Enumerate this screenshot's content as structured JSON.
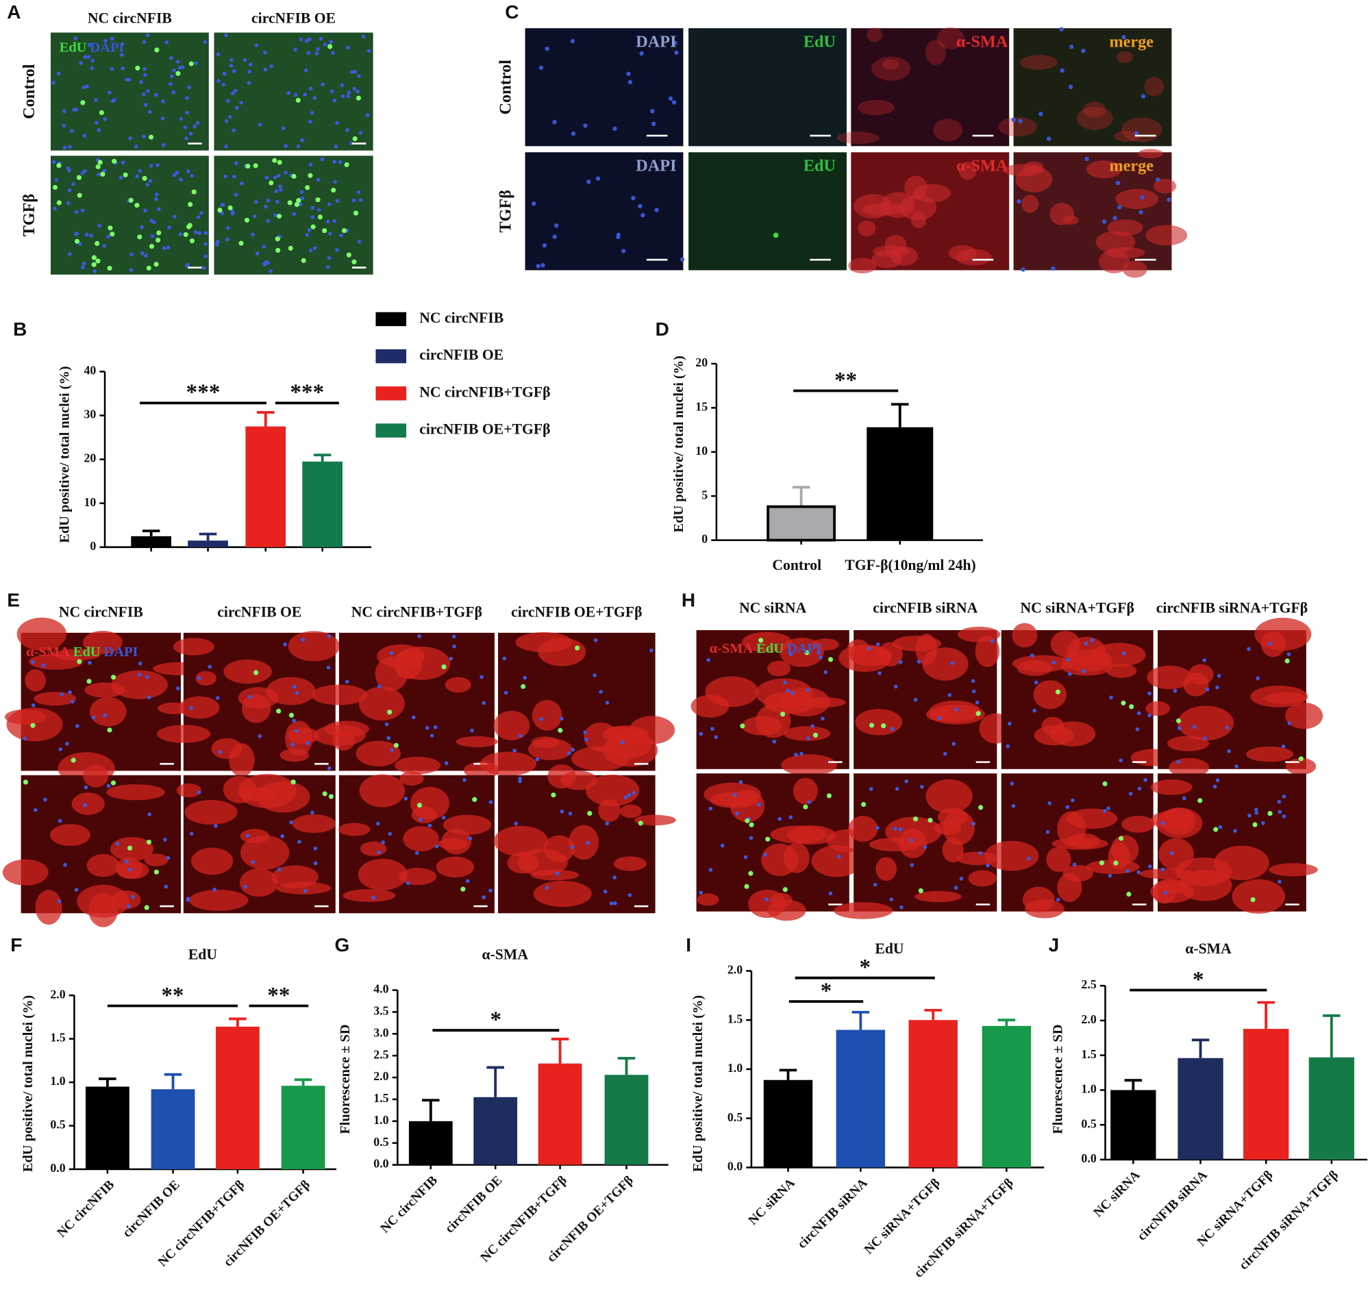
{
  "figure_panels": {
    "A": {
      "label": "A",
      "columns": [
        "NC circNFIB",
        "circNFIB OE"
      ],
      "rows": [
        "Control",
        "TGFβ"
      ],
      "channels": [
        "EdU",
        "DAPI"
      ]
    },
    "C": {
      "label": "C",
      "rows": [
        "Control",
        "TGFβ"
      ],
      "channels": [
        "DAPI",
        "EdU",
        "α-SMA",
        "merge"
      ]
    },
    "E": {
      "label": "E",
      "columns": [
        "NC circNFIB",
        "circNFIB OE",
        "NC circNFIB+TGFβ",
        "circNFIB OE+TGFβ"
      ],
      "channels": [
        "α-SMA",
        "EdU",
        "DAPI"
      ]
    },
    "H": {
      "label": "H",
      "columns": [
        "NC siRNA",
        "circNFIB siRNA",
        "NC siRNA+TGFβ",
        "circNFIB siRNA+TGFβ"
      ],
      "channels": [
        "α-SMA",
        "EdU",
        "DAPI"
      ]
    }
  },
  "chart_data": [
    {
      "type": "bar",
      "panel_label": "B",
      "ylabel": "EdU positive/ total nuclei (%)",
      "categories": [
        "NC circNFIB",
        "circNFIB OE",
        "NC circNFIB+TGFβ",
        "circNFIB OE+TGFβ"
      ],
      "values": [
        2.5,
        1.5,
        27.5,
        19.5
      ],
      "errors": [
        1.2,
        1.5,
        3.2,
        1.5
      ],
      "colors": [
        "#000000",
        "#1e2d6a",
        "#e8231f",
        "#137a4c"
      ],
      "ylim": [
        0,
        40
      ],
      "yticks": [
        0,
        10,
        20,
        30,
        40
      ],
      "annotations": [
        "***",
        "***"
      ]
    },
    {
      "type": "bar",
      "panel_label": "D",
      "ylabel": "EdU positive/ total nuclei (%)",
      "categories": [
        "Control",
        "TGF-β(10ng/ml 24h)"
      ],
      "values": [
        3.8,
        12.8
      ],
      "errors": [
        2.2,
        2.6
      ],
      "colors": [
        "#a9a9ad",
        "#000000"
      ],
      "ylim": [
        0,
        20
      ],
      "yticks": [
        0,
        5,
        10,
        15,
        20
      ],
      "annotations": [
        "**"
      ]
    },
    {
      "type": "bar",
      "panel_label": "F",
      "title": "EdU",
      "ylabel": "EdU positive/ total nuclei (%)",
      "categories": [
        "NC circNFIB",
        "circNFIB OE",
        "NC circNFIB+TGFβ",
        "circNFIB OE+TGFβ"
      ],
      "values": [
        0.95,
        0.92,
        1.64,
        0.96
      ],
      "errors": [
        0.09,
        0.17,
        0.09,
        0.07
      ],
      "colors": [
        "#000000",
        "#1f4fb0",
        "#e8231f",
        "#17994a"
      ],
      "ylim": [
        0,
        2.0
      ],
      "yticks": [
        {
          "value": 0,
          "label": "0.0"
        },
        0.5,
        {
          "value": 1,
          "label": "1.0"
        },
        1.5,
        {
          "value": 2,
          "label": "2.0"
        }
      ],
      "annotations": [
        "**",
        "**"
      ]
    },
    {
      "type": "bar",
      "panel_label": "G",
      "title": "α-SMA",
      "ylabel": "Fluorescence ± SD",
      "categories": [
        "NC circNFIB",
        "circNFIB OE",
        "NC circNFIB+TGFβ",
        "circNFIB OE+TGFβ"
      ],
      "values": [
        1.0,
        1.55,
        2.32,
        2.06
      ],
      "errors": [
        0.48,
        0.68,
        0.56,
        0.38
      ],
      "colors": [
        "#000000",
        "#1e2d5e",
        "#e8231f",
        "#157a48"
      ],
      "ylim": [
        0,
        4.0
      ],
      "yticks": [
        {
          "value": 0,
          "label": "0.0"
        },
        0.5,
        {
          "value": 1,
          "label": "1.0"
        },
        1.5,
        {
          "value": 2,
          "label": "2.0"
        },
        2.5,
        {
          "value": 3,
          "label": "3.0"
        },
        3.5,
        {
          "value": 4,
          "label": "4.0"
        }
      ],
      "annotations": [
        "*"
      ]
    },
    {
      "type": "bar",
      "panel_label": "I",
      "title": "EdU",
      "ylabel": "EdU positive/ total nuclei (%)",
      "categories": [
        "NC siRNA",
        "circNFIB siRNA",
        "NC siRNA+TGFβ",
        "circNFIB siRNA+TGFβ"
      ],
      "values": [
        0.89,
        1.4,
        1.5,
        1.44
      ],
      "errors": [
        0.1,
        0.18,
        0.1,
        0.06
      ],
      "colors": [
        "#000000",
        "#1f4fb0",
        "#e8231f",
        "#17994a"
      ],
      "ylim": [
        0,
        2.0
      ],
      "yticks": [
        {
          "value": 0,
          "label": "0.0"
        },
        0.5,
        {
          "value": 1,
          "label": "1.0"
        },
        1.5,
        {
          "value": 2,
          "label": "2.0"
        }
      ],
      "annotations": [
        "*",
        "*"
      ]
    },
    {
      "type": "bar",
      "panel_label": "J",
      "title": "α-SMA",
      "ylabel": "Fluorescence ± SD",
      "categories": [
        "NC siRNA",
        "circNFIB siRNA",
        "NC siRNA+TGFβ",
        "circNFIB siRNA+TGFβ"
      ],
      "values": [
        1.0,
        1.46,
        1.88,
        1.47
      ],
      "errors": [
        0.14,
        0.26,
        0.38,
        0.6
      ],
      "colors": [
        "#000000",
        "#1e2d5e",
        "#e8231f",
        "#157a48"
      ],
      "ylim": [
        0,
        2.5
      ],
      "yticks": [
        {
          "value": 0,
          "label": "0.0"
        },
        0.5,
        {
          "value": 1,
          "label": "1.0"
        },
        1.5,
        {
          "value": 2,
          "label": "2.0"
        },
        2.5
      ],
      "annotations": [
        "*"
      ]
    }
  ]
}
